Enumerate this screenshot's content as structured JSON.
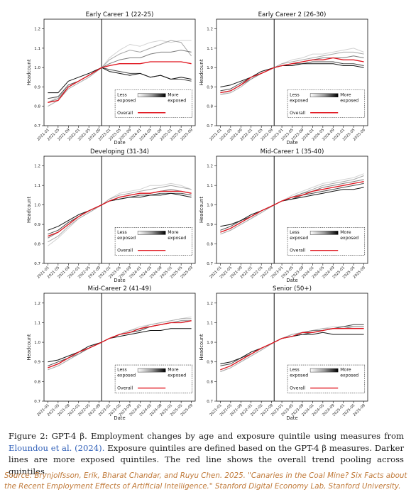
{
  "figure": {
    "caption_lead": "Figure 2:",
    "caption_pre": "GPT-4 β. Employment changes by age and exposure quintile using measures from",
    "caption_cite": "Eloundou et al. (2024).",
    "caption_post": "Exposure quintiles are defined based on the GPT-4 β measures. Darker lines are more exposed quintiles. The red line shows the overall trend pooling across quintiles.",
    "source": "Source: Brynjolfsson, Erik, Bharat Chandar, and Ruyu Chen. 2025. \"Canaries in the Coal Mine? Six Facts about the Recent Employment Effects of Artificial Intelligence.\" Stanford Digital Economy Lab, Stanford University."
  },
  "chart_data": [
    {
      "type": "line",
      "title": "Early Career 1 (22-25)",
      "xlabel": "Date",
      "ylabel": "Headcount",
      "ylim": [
        0.7,
        1.25
      ],
      "yticks": [
        "0.7",
        "0.8",
        "0.9",
        "1.0",
        "1.1",
        "1.2"
      ],
      "xticks": [
        "2021-01",
        "2021-05",
        "2021-09",
        "2022-01",
        "2022-05",
        "2022-09",
        "2023-01",
        "2023-05",
        "2023-09",
        "2024-01",
        "2024-05",
        "2024-09",
        "2025-01",
        "2025-05",
        "2025-09"
      ],
      "reference_line": "2022-10",
      "x": [
        "2021-01",
        "2021-05",
        "2021-09",
        "2022-01",
        "2022-05",
        "2022-10",
        "2023-01",
        "2023-05",
        "2023-09",
        "2024-01",
        "2024-05",
        "2024-09",
        "2025-01",
        "2025-05",
        "2025-09"
      ],
      "series": [
        {
          "name": "Quintile 1",
          "values": [
            0.82,
            0.85,
            0.9,
            0.93,
            0.96,
            1.0,
            1.05,
            1.09,
            1.12,
            1.11,
            1.13,
            1.14,
            1.13,
            1.14,
            1.14
          ]
        },
        {
          "name": "Quintile 2",
          "values": [
            0.8,
            0.83,
            0.89,
            0.92,
            0.95,
            1.0,
            1.04,
            1.07,
            1.09,
            1.08,
            1.1,
            1.12,
            1.14,
            1.13,
            1.06
          ]
        },
        {
          "name": "Quintile 3",
          "values": [
            0.82,
            0.84,
            0.9,
            0.93,
            0.96,
            1.0,
            1.02,
            1.04,
            1.05,
            1.05,
            1.07,
            1.08,
            1.08,
            1.09,
            1.08
          ]
        },
        {
          "name": "Quintile 4",
          "values": [
            0.84,
            0.85,
            0.91,
            0.93,
            0.96,
            1.0,
            0.99,
            0.98,
            0.97,
            0.97,
            0.95,
            0.96,
            0.94,
            0.94,
            0.93
          ]
        },
        {
          "name": "Quintile 5",
          "values": [
            0.87,
            0.87,
            0.93,
            0.95,
            0.97,
            1.0,
            0.98,
            0.97,
            0.96,
            0.97,
            0.95,
            0.96,
            0.94,
            0.95,
            0.94
          ]
        },
        {
          "name": "Overall",
          "values": [
            0.82,
            0.83,
            0.9,
            0.93,
            0.96,
            1.0,
            1.01,
            1.02,
            1.02,
            1.02,
            1.03,
            1.03,
            1.03,
            1.03,
            1.02
          ]
        }
      ]
    },
    {
      "type": "line",
      "title": "Early Career 2 (26-30)",
      "xlabel": "Date",
      "ylabel": "Headcount",
      "ylim": [
        0.7,
        1.25
      ],
      "yticks": [
        "0.7",
        "0.8",
        "0.9",
        "1.0",
        "1.1",
        "1.2"
      ],
      "xticks": [
        "2021-01",
        "2021-05",
        "2021-09",
        "2022-01",
        "2022-05",
        "2022-09",
        "2023-01",
        "2023-05",
        "2023-09",
        "2024-01",
        "2024-05",
        "2024-09",
        "2025-01",
        "2025-05",
        "2025-09"
      ],
      "reference_line": "2022-10",
      "x": [
        "2021-01",
        "2021-05",
        "2021-09",
        "2022-01",
        "2022-05",
        "2022-10",
        "2023-01",
        "2023-05",
        "2023-09",
        "2024-01",
        "2024-05",
        "2024-09",
        "2025-01",
        "2025-05",
        "2025-09"
      ],
      "series": [
        {
          "name": "Quintile 1",
          "values": [
            0.86,
            0.88,
            0.91,
            0.95,
            0.97,
            1.0,
            1.02,
            1.04,
            1.05,
            1.07,
            1.07,
            1.08,
            1.09,
            1.1,
            1.08
          ]
        },
        {
          "name": "Quintile 2",
          "values": [
            0.86,
            0.87,
            0.9,
            0.94,
            0.97,
            1.0,
            1.02,
            1.03,
            1.04,
            1.05,
            1.06,
            1.07,
            1.08,
            1.08,
            1.07
          ]
        },
        {
          "name": "Quintile 3",
          "values": [
            0.87,
            0.88,
            0.91,
            0.94,
            0.97,
            1.0,
            1.01,
            1.02,
            1.03,
            1.04,
            1.05,
            1.05,
            1.05,
            1.06,
            1.05
          ]
        },
        {
          "name": "Quintile 4",
          "values": [
            0.88,
            0.89,
            0.92,
            0.95,
            0.97,
            1.0,
            1.01,
            1.02,
            1.02,
            1.03,
            1.03,
            1.03,
            1.02,
            1.02,
            1.01
          ]
        },
        {
          "name": "Quintile 5",
          "values": [
            0.9,
            0.91,
            0.93,
            0.95,
            0.98,
            1.0,
            1.01,
            1.01,
            1.02,
            1.02,
            1.02,
            1.02,
            1.01,
            1.01,
            1.0
          ]
        },
        {
          "name": "Overall",
          "values": [
            0.87,
            0.88,
            0.91,
            0.95,
            0.97,
            1.0,
            1.01,
            1.02,
            1.03,
            1.04,
            1.04,
            1.05,
            1.04,
            1.04,
            1.03
          ]
        }
      ]
    },
    {
      "type": "line",
      "title": "Developing (31-34)",
      "xlabel": "Date",
      "ylabel": "Headcount",
      "ylim": [
        0.7,
        1.25
      ],
      "yticks": [
        "0.7",
        "0.8",
        "0.9",
        "1.0",
        "1.1",
        "1.2"
      ],
      "xticks": [
        "2021-01",
        "2021-05",
        "2021-09",
        "2022-01",
        "2022-05",
        "2022-09",
        "2023-01",
        "2023-05",
        "2023-09",
        "2024-01",
        "2024-05",
        "2024-09",
        "2025-01",
        "2025-05",
        "2025-09"
      ],
      "reference_line": "2022-10",
      "x": [
        "2021-01",
        "2021-05",
        "2021-09",
        "2022-01",
        "2022-05",
        "2022-10",
        "2023-01",
        "2023-05",
        "2023-09",
        "2024-01",
        "2024-05",
        "2024-09",
        "2025-01",
        "2025-05",
        "2025-09"
      ],
      "series": [
        {
          "name": "Quintile 1",
          "values": [
            0.79,
            0.83,
            0.88,
            0.93,
            0.96,
            1.0,
            1.03,
            1.06,
            1.07,
            1.08,
            1.1,
            1.1,
            1.11,
            1.1,
            1.08
          ]
        },
        {
          "name": "Quintile 2",
          "values": [
            0.81,
            0.84,
            0.89,
            0.93,
            0.96,
            1.0,
            1.03,
            1.05,
            1.06,
            1.07,
            1.08,
            1.09,
            1.1,
            1.09,
            1.08
          ]
        },
        {
          "name": "Quintile 3",
          "values": [
            0.83,
            0.86,
            0.9,
            0.94,
            0.97,
            1.0,
            1.02,
            1.04,
            1.05,
            1.06,
            1.06,
            1.07,
            1.08,
            1.07,
            1.06
          ]
        },
        {
          "name": "Quintile 4",
          "values": [
            0.85,
            0.87,
            0.91,
            0.94,
            0.97,
            1.0,
            1.02,
            1.03,
            1.04,
            1.05,
            1.05,
            1.06,
            1.06,
            1.06,
            1.05
          ]
        },
        {
          "name": "Quintile 5",
          "values": [
            0.87,
            0.89,
            0.92,
            0.95,
            0.97,
            1.0,
            1.02,
            1.03,
            1.04,
            1.04,
            1.05,
            1.05,
            1.06,
            1.05,
            1.04
          ]
        },
        {
          "name": "Overall",
          "values": [
            0.84,
            0.86,
            0.9,
            0.94,
            0.97,
            1.0,
            1.02,
            1.04,
            1.05,
            1.06,
            1.06,
            1.07,
            1.07,
            1.07,
            1.06
          ]
        }
      ]
    },
    {
      "type": "line",
      "title": "Mid-Career 1 (35-40)",
      "xlabel": "Date",
      "ylabel": "Headcount",
      "ylim": [
        0.7,
        1.25
      ],
      "yticks": [
        "0.7",
        "0.8",
        "0.9",
        "1.0",
        "1.1",
        "1.2"
      ],
      "xticks": [
        "2021-01",
        "2021-05",
        "2021-09",
        "2022-01",
        "2022-05",
        "2022-09",
        "2023-01",
        "2023-05",
        "2023-09",
        "2024-01",
        "2024-05",
        "2024-09",
        "2025-01",
        "2025-05",
        "2025-09"
      ],
      "reference_line": "2022-10",
      "x": [
        "2021-01",
        "2021-05",
        "2021-09",
        "2022-01",
        "2022-05",
        "2022-10",
        "2023-01",
        "2023-05",
        "2023-09",
        "2024-01",
        "2024-05",
        "2024-09",
        "2025-01",
        "2025-05",
        "2025-09"
      ],
      "series": [
        {
          "name": "Quintile 1",
          "values": [
            0.85,
            0.87,
            0.9,
            0.93,
            0.97,
            1.0,
            1.02,
            1.05,
            1.07,
            1.09,
            1.11,
            1.12,
            1.13,
            1.14,
            1.16
          ]
        },
        {
          "name": "Quintile 2",
          "values": [
            0.85,
            0.87,
            0.9,
            0.93,
            0.96,
            1.0,
            1.02,
            1.04,
            1.06,
            1.08,
            1.1,
            1.11,
            1.12,
            1.13,
            1.15
          ]
        },
        {
          "name": "Quintile 3",
          "values": [
            0.86,
            0.88,
            0.91,
            0.94,
            0.97,
            1.0,
            1.02,
            1.04,
            1.06,
            1.07,
            1.09,
            1.1,
            1.11,
            1.12,
            1.13
          ]
        },
        {
          "name": "Quintile 4",
          "values": [
            0.87,
            0.89,
            0.92,
            0.94,
            0.97,
            1.0,
            1.02,
            1.03,
            1.05,
            1.06,
            1.07,
            1.08,
            1.09,
            1.1,
            1.11
          ]
        },
        {
          "name": "Quintile 5",
          "values": [
            0.89,
            0.9,
            0.92,
            0.95,
            0.97,
            1.0,
            1.02,
            1.03,
            1.04,
            1.05,
            1.06,
            1.07,
            1.08,
            1.08,
            1.09
          ]
        },
        {
          "name": "Overall",
          "values": [
            0.86,
            0.88,
            0.91,
            0.94,
            0.97,
            1.0,
            1.02,
            1.04,
            1.05,
            1.07,
            1.08,
            1.09,
            1.1,
            1.11,
            1.12
          ]
        }
      ]
    },
    {
      "type": "line",
      "title": "Mid-Career 2 (41-49)",
      "xlabel": "Date",
      "ylabel": "Headcount",
      "ylim": [
        0.7,
        1.25
      ],
      "yticks": [
        "0.7",
        "0.8",
        "0.9",
        "1.0",
        "1.1",
        "1.2"
      ],
      "xticks": [
        "2021-01",
        "2021-05",
        "2021-09",
        "2022-01",
        "2022-05",
        "2022-09",
        "2023-01",
        "2023-05",
        "2023-09",
        "2024-01",
        "2024-05",
        "2024-09",
        "2025-01",
        "2025-05",
        "2025-09"
      ],
      "reference_line": "2022-10",
      "x": [
        "2021-01",
        "2021-05",
        "2021-09",
        "2022-01",
        "2022-05",
        "2022-10",
        "2023-01",
        "2023-05",
        "2023-09",
        "2024-01",
        "2024-05",
        "2024-09",
        "2025-01",
        "2025-05",
        "2025-09"
      ],
      "series": [
        {
          "name": "Quintile 1",
          "values": [
            0.86,
            0.88,
            0.91,
            0.94,
            0.97,
            1.0,
            1.02,
            1.04,
            1.06,
            1.08,
            1.09,
            1.1,
            1.11,
            1.12,
            1.13
          ]
        },
        {
          "name": "Quintile 2",
          "values": [
            0.86,
            0.88,
            0.91,
            0.94,
            0.97,
            1.0,
            1.02,
            1.04,
            1.06,
            1.07,
            1.09,
            1.1,
            1.11,
            1.12,
            1.12
          ]
        },
        {
          "name": "Quintile 3",
          "values": [
            0.87,
            0.89,
            0.92,
            0.94,
            0.97,
            1.0,
            1.02,
            1.04,
            1.05,
            1.07,
            1.08,
            1.09,
            1.1,
            1.11,
            1.11
          ]
        },
        {
          "name": "Quintile 4",
          "values": [
            0.88,
            0.9,
            0.92,
            0.95,
            0.97,
            1.0,
            1.02,
            1.04,
            1.05,
            1.06,
            1.08,
            1.09,
            1.1,
            1.1,
            1.11
          ]
        },
        {
          "name": "Quintile 5",
          "values": [
            0.9,
            0.91,
            0.93,
            0.95,
            0.98,
            1.0,
            1.02,
            1.03,
            1.04,
            1.05,
            1.06,
            1.06,
            1.07,
            1.07,
            1.07
          ]
        },
        {
          "name": "Overall",
          "values": [
            0.87,
            0.89,
            0.92,
            0.95,
            0.97,
            1.0,
            1.02,
            1.04,
            1.05,
            1.07,
            1.08,
            1.09,
            1.1,
            1.1,
            1.11
          ]
        }
      ]
    },
    {
      "type": "line",
      "title": "Senior (50+)",
      "xlabel": "Date",
      "ylabel": "Headcount",
      "ylim": [
        0.7,
        1.25
      ],
      "yticks": [
        "0.7",
        "0.8",
        "0.9",
        "1.0",
        "1.1",
        "1.2"
      ],
      "xticks": [
        "2021-01",
        "2021-05",
        "2021-09",
        "2022-01",
        "2022-05",
        "2022-09",
        "2023-01",
        "2023-05",
        "2023-09",
        "2024-01",
        "2024-05",
        "2024-09",
        "2025-01",
        "2025-05",
        "2025-09"
      ],
      "reference_line": "2022-10",
      "x": [
        "2021-01",
        "2021-05",
        "2021-09",
        "2022-01",
        "2022-05",
        "2022-10",
        "2023-01",
        "2023-05",
        "2023-09",
        "2024-01",
        "2024-05",
        "2024-09",
        "2025-01",
        "2025-05",
        "2025-09"
      ],
      "series": [
        {
          "name": "Quintile 1",
          "values": [
            0.85,
            0.87,
            0.9,
            0.93,
            0.96,
            1.0,
            1.02,
            1.04,
            1.05,
            1.06,
            1.07,
            1.08,
            1.08,
            1.09,
            1.09
          ]
        },
        {
          "name": "Quintile 2",
          "values": [
            0.85,
            0.87,
            0.9,
            0.93,
            0.96,
            1.0,
            1.02,
            1.04,
            1.05,
            1.06,
            1.07,
            1.07,
            1.08,
            1.08,
            1.08
          ]
        },
        {
          "name": "Quintile 3",
          "values": [
            0.86,
            0.88,
            0.91,
            0.94,
            0.97,
            1.0,
            1.02,
            1.03,
            1.05,
            1.06,
            1.06,
            1.07,
            1.07,
            1.08,
            1.08
          ]
        },
        {
          "name": "Quintile 4",
          "values": [
            0.88,
            0.89,
            0.92,
            0.94,
            0.97,
            1.0,
            1.02,
            1.03,
            1.04,
            1.05,
            1.06,
            1.07,
            1.08,
            1.09,
            1.09
          ]
        },
        {
          "name": "Quintile 5",
          "values": [
            0.89,
            0.9,
            0.92,
            0.95,
            0.97,
            1.0,
            1.02,
            1.03,
            1.04,
            1.04,
            1.05,
            1.04,
            1.04,
            1.04,
            1.04
          ]
        },
        {
          "name": "Overall",
          "values": [
            0.86,
            0.88,
            0.91,
            0.94,
            0.97,
            1.0,
            1.02,
            1.03,
            1.05,
            1.05,
            1.06,
            1.07,
            1.07,
            1.07,
            1.07
          ]
        }
      ]
    }
  ],
  "legend": {
    "less": "Less exposed",
    "more": "More exposed",
    "overall": "Overall",
    "placement": "lower-right"
  },
  "colors": {
    "overall": "#e0141e",
    "quintiles": [
      "#d2d2d2",
      "#a8a8a8",
      "#7d7d7d",
      "#4a4a4a",
      "#141414"
    ],
    "source_text": "#c07a3a",
    "citation": "#2f5fb8"
  }
}
